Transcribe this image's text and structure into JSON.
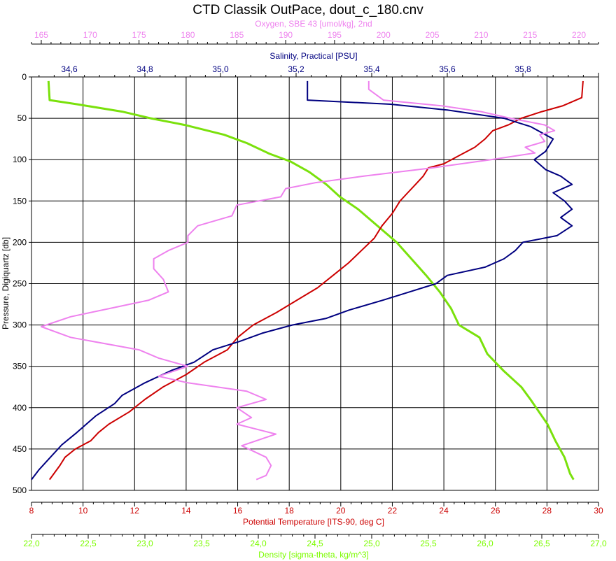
{
  "chart_data": {
    "type": "line",
    "title": "CTD Classik OutPace, dout_c_180.cnv",
    "grid": true,
    "y_axis": {
      "label": "Pressure, Digiquartz [db]",
      "range": [
        0,
        500
      ],
      "inverted": true,
      "ticks": [
        "0",
        "50",
        "100",
        "150",
        "200",
        "250",
        "300",
        "350",
        "400",
        "450",
        "500"
      ]
    },
    "x_axes": [
      {
        "id": "oxygen",
        "label": "Oxygen, SBE 43 [umol/kg], 2nd",
        "position": "top",
        "color": "#ee82ee",
        "range": [
          164,
          222
        ],
        "ticks": [
          "165",
          "170",
          "175",
          "180",
          "185",
          "190",
          "195",
          "200",
          "205",
          "210",
          "215",
          "220"
        ]
      },
      {
        "id": "salinity",
        "label": "Salinity, Practical [PSU]",
        "position": "top",
        "color": "#000080",
        "range": [
          34.5,
          36.0
        ],
        "ticks": [
          "34,6",
          "34,8",
          "35,0",
          "35,2",
          "35,4",
          "35,6",
          "35,8"
        ]
      },
      {
        "id": "temperature",
        "label": "Potential Temperature [ITS-90, deg C]",
        "position": "bottom",
        "color": "#cc0000",
        "range": [
          8,
          30
        ],
        "ticks": [
          "8",
          "10",
          "12",
          "14",
          "16",
          "18",
          "20",
          "22",
          "24",
          "26",
          "28",
          "30"
        ]
      },
      {
        "id": "density",
        "label": "Density [sigma-theta, kg/m^3]",
        "position": "bottom",
        "color": "#7cfc00",
        "range": [
          22.0,
          27.0
        ],
        "ticks": [
          "22,0",
          "22,5",
          "23,0",
          "23,5",
          "24,0",
          "24,5",
          "25,0",
          "25,5",
          "26,0",
          "26,5",
          "27,0"
        ]
      }
    ],
    "series": [
      {
        "axis": "density",
        "color": "#7ae10c",
        "points": [
          [
            22.15,
            5
          ],
          [
            22.16,
            28
          ],
          [
            22.4,
            33
          ],
          [
            22.8,
            42
          ],
          [
            23.05,
            50
          ],
          [
            23.35,
            58
          ],
          [
            23.7,
            70
          ],
          [
            23.9,
            80
          ],
          [
            24.1,
            93
          ],
          [
            24.28,
            102
          ],
          [
            24.45,
            115
          ],
          [
            24.6,
            130
          ],
          [
            24.72,
            145
          ],
          [
            24.88,
            160
          ],
          [
            25.05,
            180
          ],
          [
            25.22,
            200
          ],
          [
            25.35,
            220
          ],
          [
            25.48,
            240
          ],
          [
            25.6,
            260
          ],
          [
            25.7,
            280
          ],
          [
            25.77,
            300
          ],
          [
            25.95,
            315
          ],
          [
            26.02,
            335
          ],
          [
            26.16,
            355
          ],
          [
            26.32,
            375
          ],
          [
            26.4,
            390
          ],
          [
            26.5,
            410
          ],
          [
            26.55,
            420
          ],
          [
            26.62,
            440
          ],
          [
            26.7,
            460
          ],
          [
            26.75,
            480
          ],
          [
            26.78,
            487
          ]
        ]
      },
      {
        "axis": "temperature",
        "color": "#cc0000",
        "points": [
          [
            29.4,
            5
          ],
          [
            29.35,
            25
          ],
          [
            28.6,
            35
          ],
          [
            27.8,
            42
          ],
          [
            27.0,
            50
          ],
          [
            26.5,
            58
          ],
          [
            25.9,
            65
          ],
          [
            25.6,
            75
          ],
          [
            25.2,
            85
          ],
          [
            24.6,
            95
          ],
          [
            24.0,
            105
          ],
          [
            23.4,
            110
          ],
          [
            23.2,
            120
          ],
          [
            22.9,
            130
          ],
          [
            22.6,
            140
          ],
          [
            22.3,
            150
          ],
          [
            22.0,
            165
          ],
          [
            21.6,
            180
          ],
          [
            21.3,
            195
          ],
          [
            20.8,
            210
          ],
          [
            20.3,
            225
          ],
          [
            19.7,
            240
          ],
          [
            19.1,
            255
          ],
          [
            18.3,
            270
          ],
          [
            17.5,
            285
          ],
          [
            16.6,
            300
          ],
          [
            16.0,
            315
          ],
          [
            15.6,
            330
          ],
          [
            14.7,
            345
          ],
          [
            14.0,
            360
          ],
          [
            13.1,
            375
          ],
          [
            12.4,
            390
          ],
          [
            11.8,
            405
          ],
          [
            11.0,
            420
          ],
          [
            10.6,
            430
          ],
          [
            10.3,
            440
          ],
          [
            9.7,
            450
          ],
          [
            9.3,
            460
          ],
          [
            9.1,
            470
          ],
          [
            8.7,
            487
          ]
        ]
      },
      {
        "axis": "salinity",
        "color": "#000080",
        "points": [
          [
            35.23,
            5
          ],
          [
            35.23,
            28
          ],
          [
            35.45,
            33
          ],
          [
            35.6,
            40
          ],
          [
            35.75,
            50
          ],
          [
            35.82,
            60
          ],
          [
            35.88,
            75
          ],
          [
            35.86,
            90
          ],
          [
            35.83,
            100
          ],
          [
            35.86,
            112
          ],
          [
            35.9,
            120
          ],
          [
            35.93,
            130
          ],
          [
            35.88,
            140
          ],
          [
            35.91,
            150
          ],
          [
            35.93,
            160
          ],
          [
            35.9,
            170
          ],
          [
            35.93,
            180
          ],
          [
            35.89,
            192
          ],
          [
            35.8,
            200
          ],
          [
            35.78,
            210
          ],
          [
            35.75,
            220
          ],
          [
            35.7,
            230
          ],
          [
            35.6,
            240
          ],
          [
            35.57,
            250
          ],
          [
            35.5,
            260
          ],
          [
            35.43,
            270
          ],
          [
            35.34,
            282
          ],
          [
            35.28,
            292
          ],
          [
            35.19,
            300
          ],
          [
            35.11,
            310
          ],
          [
            35.05,
            320
          ],
          [
            34.98,
            330
          ],
          [
            34.93,
            345
          ],
          [
            34.87,
            355
          ],
          [
            34.8,
            370
          ],
          [
            34.74,
            385
          ],
          [
            34.72,
            395
          ],
          [
            34.67,
            410
          ],
          [
            34.62,
            430
          ],
          [
            34.58,
            445
          ],
          [
            34.55,
            460
          ],
          [
            34.52,
            475
          ],
          [
            34.5,
            487
          ]
        ]
      },
      {
        "axis": "oxygen",
        "color": "#ee82ee",
        "points": [
          [
            198.5,
            5
          ],
          [
            198.5,
            15
          ],
          [
            200.0,
            28
          ],
          [
            206.0,
            35
          ],
          [
            210.0,
            42
          ],
          [
            213.0,
            50
          ],
          [
            216.5,
            58
          ],
          [
            217.5,
            65
          ],
          [
            216.0,
            70
          ],
          [
            216.5,
            78
          ],
          [
            214.5,
            85
          ],
          [
            215.5,
            92
          ],
          [
            211.0,
            100
          ],
          [
            205.0,
            110
          ],
          [
            198.0,
            120
          ],
          [
            193.0,
            128
          ],
          [
            190.0,
            135
          ],
          [
            189.5,
            145
          ],
          [
            185.0,
            155
          ],
          [
            184.5,
            168
          ],
          [
            181.0,
            180
          ],
          [
            180.0,
            192
          ],
          [
            180.0,
            200
          ],
          [
            178.0,
            210
          ],
          [
            176.5,
            220
          ],
          [
            176.5,
            232
          ],
          [
            177.5,
            245
          ],
          [
            178.0,
            260
          ],
          [
            176.0,
            270
          ],
          [
            172.0,
            280
          ],
          [
            168.0,
            290
          ],
          [
            165.0,
            302
          ],
          [
            168.0,
            315
          ],
          [
            175.0,
            330
          ],
          [
            177.0,
            340
          ],
          [
            180.0,
            350
          ],
          [
            177.0,
            362
          ],
          [
            180.0,
            370
          ],
          [
            186.0,
            380
          ],
          [
            188.0,
            390
          ],
          [
            185.0,
            400
          ],
          [
            186.5,
            412
          ],
          [
            185.0,
            420
          ],
          [
            189.0,
            432
          ],
          [
            185.5,
            446
          ],
          [
            188.0,
            460
          ],
          [
            188.5,
            470
          ],
          [
            188.0,
            482
          ],
          [
            187.0,
            487
          ]
        ]
      }
    ]
  }
}
